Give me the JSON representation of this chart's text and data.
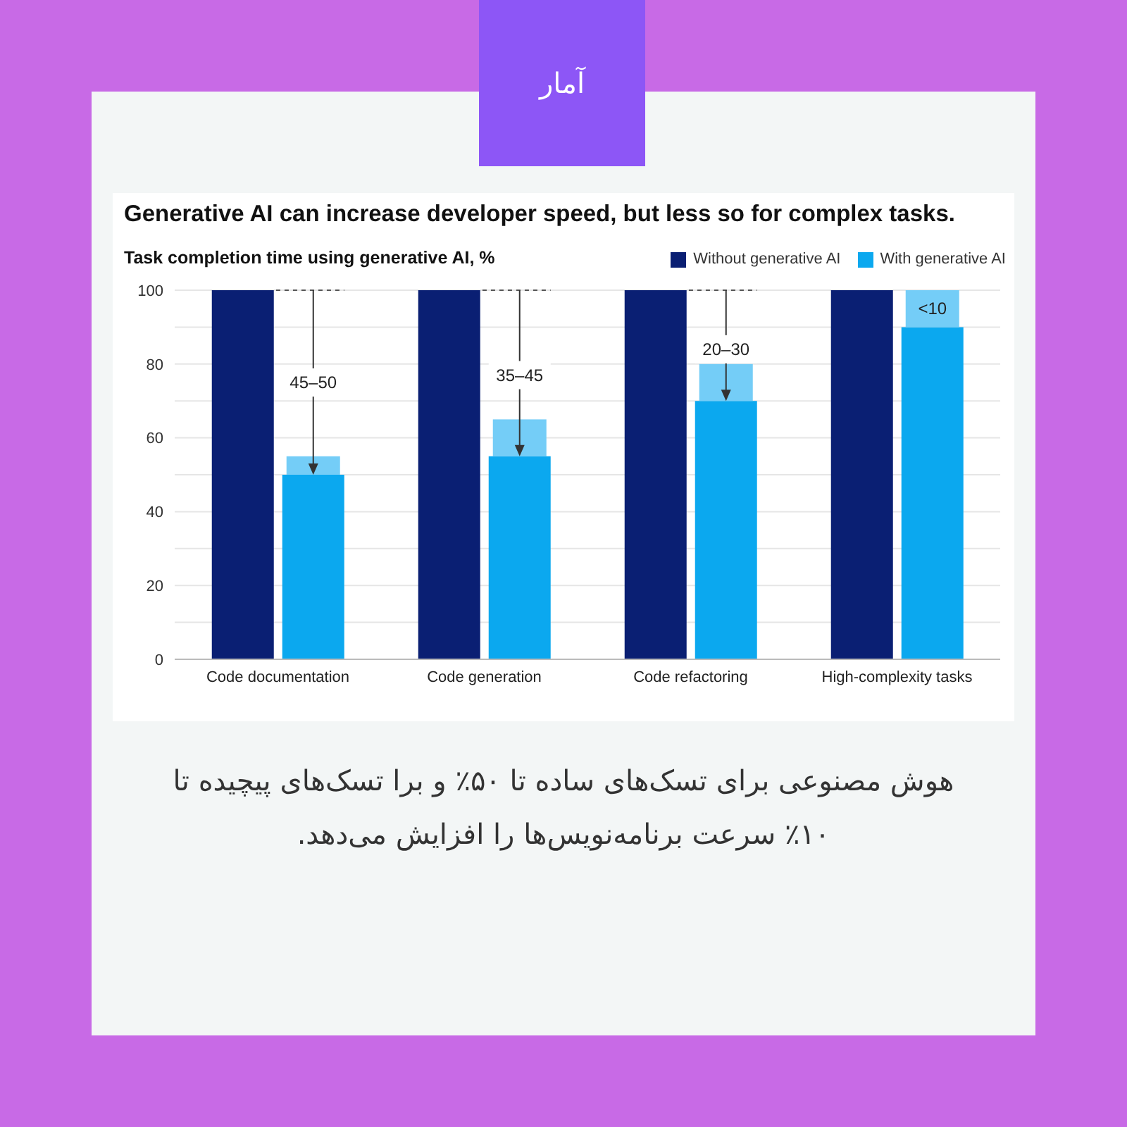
{
  "chart_data": {
    "type": "bar",
    "title": "Generative AI can increase developer speed, but less so for complex tasks.",
    "subtitle": "Task completion time using generative AI, %",
    "categories": [
      "Code documentation",
      "Code generation",
      "Code refactoring",
      "High-complexity tasks"
    ],
    "series": [
      {
        "name": "Without generative AI",
        "color": "#0a1f73",
        "values": [
          100,
          100,
          100,
          100
        ]
      },
      {
        "name": "With generative AI",
        "color": "#0ba8ef",
        "values": [
          50,
          55,
          70,
          90
        ]
      },
      {
        "color": "#74cdf7",
        "values": [
          5,
          10,
          10,
          10
        ],
        "base": [
          50,
          55,
          70,
          90
        ]
      }
    ],
    "ylim": [
      0,
      100
    ],
    "yticks": [
      0,
      {
        "value": 10,
        "label": null
      },
      20,
      {
        "value": 30,
        "label": null
      },
      40,
      {
        "value": 50,
        "label": null
      },
      60,
      {
        "value": 70,
        "label": null
      },
      80,
      {
        "value": 90,
        "label": null
      },
      100
    ],
    "grid": "y",
    "legend": "top right",
    "annotations": [
      {
        "text": "45–50",
        "x": "Code documentation",
        "y": 75
      },
      {
        "text": "35–45",
        "x": "Code generation",
        "y": 77
      },
      {
        "text": "20–30",
        "x": "Code refactoring",
        "y": 84
      },
      {
        "text": "<10",
        "x": "High-complexity tasks",
        "y": 95
      },
      "آمار",
      "هوش مصنوعی برای تسک‌های ساده تا ۵۰٪ و برا تسک‌های پیچیده تا ۱۰٪ سرعت برنامه‌نویس‌ها را افزایش می‌دهد."
    ]
  }
}
